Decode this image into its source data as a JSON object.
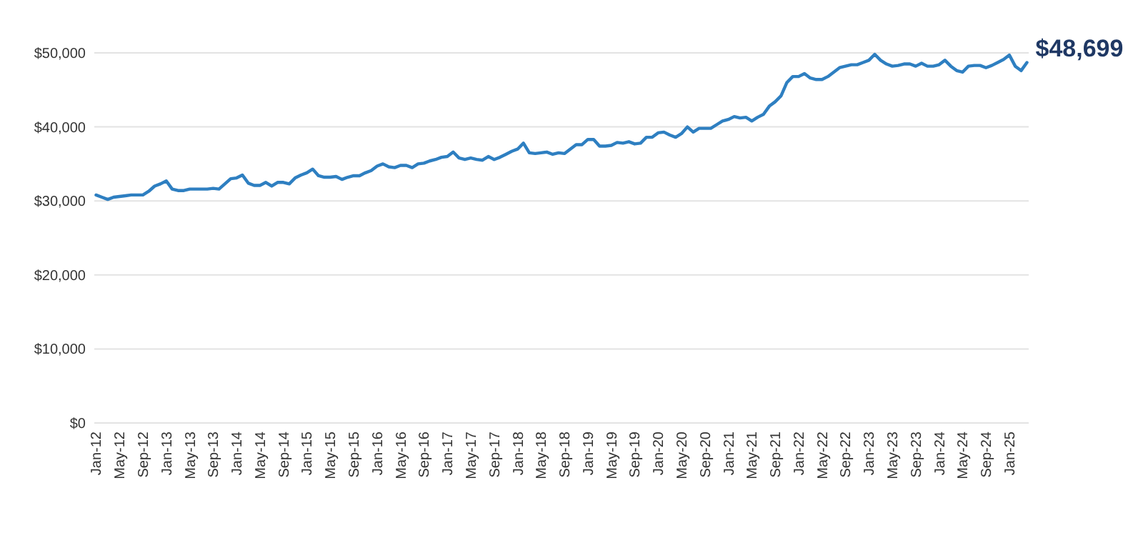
{
  "chart_data": {
    "type": "line",
    "categories": [
      "Jan-12",
      null,
      null,
      null,
      "May-12",
      null,
      null,
      null,
      "Sep-12",
      null,
      null,
      null,
      "Jan-13",
      null,
      null,
      null,
      "May-13",
      null,
      null,
      null,
      "Sep-13",
      null,
      null,
      null,
      "Jan-14",
      null,
      null,
      null,
      "May-14",
      null,
      null,
      null,
      "Sep-14",
      null,
      null,
      null,
      "Jan-15",
      null,
      null,
      null,
      "May-15",
      null,
      null,
      null,
      "Sep-15",
      null,
      null,
      null,
      "Jan-16",
      null,
      null,
      null,
      "May-16",
      null,
      null,
      null,
      "Sep-16",
      null,
      null,
      null,
      "Jan-17",
      null,
      null,
      null,
      "May-17",
      null,
      null,
      null,
      "Sep-17",
      null,
      null,
      null,
      "Jan-18",
      null,
      null,
      null,
      "May-18",
      null,
      null,
      null,
      "Sep-18",
      null,
      null,
      null,
      "Jan-19",
      null,
      null,
      null,
      "May-19",
      null,
      null,
      null,
      "Sep-19",
      null,
      null,
      null,
      "Jan-20",
      null,
      null,
      null,
      "May-20",
      null,
      null,
      null,
      "Sep-20",
      null,
      null,
      null,
      "Jan-21",
      null,
      null,
      null,
      "May-21",
      null,
      null,
      null,
      "Sep-21",
      null,
      null,
      null,
      "Jan-22",
      null,
      null,
      null,
      "May-22",
      null,
      null,
      null,
      "Sep-22",
      null,
      null,
      null,
      "Jan-23",
      null,
      null,
      null,
      "May-23",
      null,
      null,
      null,
      "Sep-23",
      null,
      null,
      null,
      "Jan-24",
      null,
      null,
      null,
      "May-24",
      null,
      null,
      null,
      "Sep-24",
      null,
      null,
      null,
      "Jan-25",
      null,
      null,
      null
    ],
    "series": [
      {
        "color": "#2e7fc1",
        "values": [
          30800,
          30500,
          30200,
          30500,
          30600,
          30700,
          30800,
          30800,
          30800,
          31300,
          32000,
          32300,
          32700,
          31600,
          31400,
          31400,
          31600,
          31600,
          31600,
          31600,
          31700,
          31600,
          32300,
          33000,
          33100,
          33500,
          32400,
          32100,
          32100,
          32500,
          32000,
          32500,
          32500,
          32300,
          33100,
          33500,
          33800,
          34300,
          33400,
          33200,
          33200,
          33300,
          32900,
          33200,
          33400,
          33400,
          33800,
          34100,
          34700,
          35000,
          34600,
          34500,
          34800,
          34800,
          34500,
          35000,
          35100,
          35400,
          35600,
          35900,
          36000,
          36600,
          35800,
          35600,
          35800,
          35600,
          35500,
          36000,
          35600,
          35900,
          36300,
          36700,
          37000,
          37800,
          36500,
          36400,
          36500,
          36600,
          36300,
          36500,
          36400,
          37000,
          37600,
          37600,
          38300,
          38300,
          37400,
          37400,
          37500,
          37900,
          37800,
          38000,
          37700,
          37800,
          38600,
          38600,
          39200,
          39300,
          38900,
          38600,
          39100,
          40000,
          39300,
          39800,
          39800,
          39800,
          40300,
          40800,
          41000,
          41400,
          41200,
          41300,
          40800,
          41300,
          41700,
          42800,
          43400,
          44200,
          46000,
          46800,
          46800,
          47200,
          46600,
          46400,
          46400,
          46800,
          47400,
          48000,
          48200,
          48400,
          48400,
          48700,
          49000,
          49800,
          49000,
          48500,
          48200,
          48300,
          48500,
          48500,
          48200,
          48600,
          48200,
          48200,
          48400,
          49000,
          48200,
          47600,
          47400,
          48200,
          48300,
          48300,
          48000,
          48300,
          48700,
          49100,
          49700,
          48200,
          47600,
          48699
        ]
      }
    ],
    "ylim": [
      0,
      50000
    ],
    "yticks": [
      {
        "value": 0,
        "label": "$0"
      },
      {
        "value": 10000,
        "label": "$10,000"
      },
      {
        "value": 20000,
        "label": "$20,000"
      },
      {
        "value": 30000,
        "label": "$30,000"
      },
      {
        "value": 40000,
        "label": "$40,000"
      },
      {
        "value": 50000,
        "label": "$50,000"
      }
    ],
    "grid": "y",
    "annotations": [
      "$48,699"
    ]
  }
}
